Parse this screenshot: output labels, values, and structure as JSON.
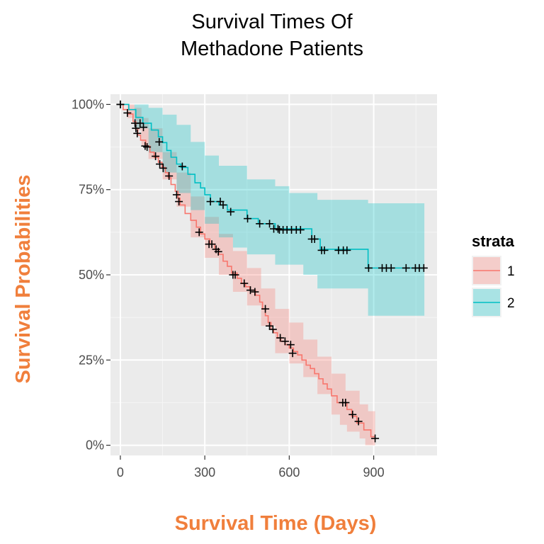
{
  "chart_data": {
    "type": "line",
    "subtype": "kaplan-meier-survival",
    "title_lines": [
      "Survival Times Of",
      "Methadone Patients"
    ],
    "xlabel": "Survival Time (Days)",
    "ylabel": "Survival Probabilities",
    "xlim": [
      -35,
      1125
    ],
    "ylim": [
      -0.03,
      1.03
    ],
    "x_ticks": [
      0,
      300,
      600,
      900
    ],
    "x_tick_labels": [
      "0",
      "300",
      "600",
      "900"
    ],
    "y_ticks": [
      0,
      0.25,
      0.5,
      0.75,
      1.0
    ],
    "y_tick_labels": [
      "0%",
      "25%",
      "50%",
      "75%",
      "100%"
    ],
    "x_minor_ticks": [
      150,
      450,
      750,
      1050
    ],
    "y_minor_ticks": [
      0.125,
      0.375,
      0.625,
      0.875
    ],
    "grid": true,
    "legend": {
      "title": "strata",
      "position": "right",
      "items": [
        "1",
        "2"
      ]
    },
    "series": [
      {
        "name": "1",
        "color": "#F8766D",
        "fill": "#F8766D",
        "steps": [
          [
            0,
            1.0
          ],
          [
            10,
            0.985
          ],
          [
            25,
            0.972
          ],
          [
            45,
            0.95
          ],
          [
            55,
            0.93
          ],
          [
            62,
            0.91
          ],
          [
            72,
            0.895
          ],
          [
            90,
            0.878
          ],
          [
            105,
            0.86
          ],
          [
            120,
            0.845
          ],
          [
            135,
            0.83
          ],
          [
            148,
            0.815
          ],
          [
            160,
            0.8
          ],
          [
            170,
            0.785
          ],
          [
            180,
            0.765
          ],
          [
            195,
            0.745
          ],
          [
            205,
            0.725
          ],
          [
            212,
            0.705
          ],
          [
            230,
            0.68
          ],
          [
            250,
            0.66
          ],
          [
            270,
            0.64
          ],
          [
            285,
            0.62
          ],
          [
            300,
            0.605
          ],
          [
            318,
            0.59
          ],
          [
            335,
            0.575
          ],
          [
            350,
            0.56
          ],
          [
            365,
            0.54
          ],
          [
            380,
            0.525
          ],
          [
            395,
            0.505
          ],
          [
            415,
            0.49
          ],
          [
            430,
            0.475
          ],
          [
            445,
            0.465
          ],
          [
            460,
            0.455
          ],
          [
            480,
            0.44
          ],
          [
            495,
            0.42
          ],
          [
            505,
            0.4
          ],
          [
            515,
            0.38
          ],
          [
            525,
            0.36
          ],
          [
            535,
            0.34
          ],
          [
            545,
            0.33
          ],
          [
            558,
            0.315
          ],
          [
            570,
            0.305
          ],
          [
            585,
            0.295
          ],
          [
            600,
            0.285
          ],
          [
            615,
            0.275
          ],
          [
            630,
            0.265
          ],
          [
            645,
            0.25
          ],
          [
            660,
            0.235
          ],
          [
            675,
            0.225
          ],
          [
            690,
            0.21
          ],
          [
            705,
            0.195
          ],
          [
            720,
            0.18
          ],
          [
            735,
            0.165
          ],
          [
            750,
            0.145
          ],
          [
            770,
            0.125
          ],
          [
            805,
            0.105
          ],
          [
            822,
            0.085
          ],
          [
            840,
            0.065
          ],
          [
            865,
            0.045
          ],
          [
            890,
            0.025
          ],
          [
            905,
            0.025
          ]
        ],
        "ci_lower": [
          [
            0,
            1.0
          ],
          [
            25,
            0.96
          ],
          [
            50,
            0.925
          ],
          [
            75,
            0.88
          ],
          [
            100,
            0.84
          ],
          [
            150,
            0.78
          ],
          [
            200,
            0.7
          ],
          [
            250,
            0.61
          ],
          [
            300,
            0.55
          ],
          [
            350,
            0.5
          ],
          [
            400,
            0.45
          ],
          [
            450,
            0.41
          ],
          [
            500,
            0.35
          ],
          [
            550,
            0.27
          ],
          [
            600,
            0.24
          ],
          [
            650,
            0.2
          ],
          [
            700,
            0.15
          ],
          [
            750,
            0.09
          ],
          [
            780,
            0.06
          ],
          [
            805,
            0.04
          ],
          [
            850,
            0.02
          ],
          [
            870,
            0.0
          ],
          [
            905,
            0.0
          ]
        ],
        "ci_upper": [
          [
            0,
            1.0
          ],
          [
            25,
            1.0
          ],
          [
            50,
            0.99
          ],
          [
            75,
            0.96
          ],
          [
            100,
            0.93
          ],
          [
            150,
            0.86
          ],
          [
            200,
            0.8
          ],
          [
            250,
            0.73
          ],
          [
            300,
            0.67
          ],
          [
            350,
            0.62
          ],
          [
            400,
            0.57
          ],
          [
            450,
            0.52
          ],
          [
            500,
            0.46
          ],
          [
            550,
            0.4
          ],
          [
            600,
            0.36
          ],
          [
            650,
            0.31
          ],
          [
            700,
            0.26
          ],
          [
            750,
            0.21
          ],
          [
            800,
            0.16
          ],
          [
            850,
            0.12
          ],
          [
            880,
            0.1
          ],
          [
            905,
            0.09
          ]
        ],
        "censored": [
          [
            0,
            1.0
          ],
          [
            25,
            0.975
          ],
          [
            55,
            0.93
          ],
          [
            60,
            0.915
          ],
          [
            88,
            0.878
          ],
          [
            95,
            0.875
          ],
          [
            125,
            0.848
          ],
          [
            140,
            0.825
          ],
          [
            152,
            0.813
          ],
          [
            173,
            0.79
          ],
          [
            200,
            0.735
          ],
          [
            208,
            0.715
          ],
          [
            280,
            0.625
          ],
          [
            315,
            0.59
          ],
          [
            325,
            0.59
          ],
          [
            340,
            0.575
          ],
          [
            348,
            0.568
          ],
          [
            400,
            0.5
          ],
          [
            408,
            0.5
          ],
          [
            440,
            0.475
          ],
          [
            462,
            0.455
          ],
          [
            478,
            0.45
          ],
          [
            515,
            0.4
          ],
          [
            530,
            0.35
          ],
          [
            542,
            0.34
          ],
          [
            568,
            0.315
          ],
          [
            585,
            0.305
          ],
          [
            605,
            0.295
          ],
          [
            612,
            0.27
          ],
          [
            800,
            0.125
          ],
          [
            790,
            0.125
          ],
          [
            825,
            0.09
          ],
          [
            846,
            0.07
          ],
          [
            905,
            0.02
          ]
        ]
      },
      {
        "name": "2",
        "color": "#00BFC4",
        "fill": "#00BFC4",
        "steps": [
          [
            0,
            1.0
          ],
          [
            30,
            0.985
          ],
          [
            55,
            0.962
          ],
          [
            80,
            0.945
          ],
          [
            110,
            0.925
          ],
          [
            135,
            0.905
          ],
          [
            150,
            0.888
          ],
          [
            165,
            0.865
          ],
          [
            180,
            0.845
          ],
          [
            200,
            0.825
          ],
          [
            215,
            0.815
          ],
          [
            240,
            0.795
          ],
          [
            265,
            0.77
          ],
          [
            285,
            0.755
          ],
          [
            300,
            0.735
          ],
          [
            320,
            0.715
          ],
          [
            350,
            0.705
          ],
          [
            380,
            0.69
          ],
          [
            450,
            0.665
          ],
          [
            490,
            0.65
          ],
          [
            550,
            0.635
          ],
          [
            680,
            0.605
          ],
          [
            710,
            0.575
          ],
          [
            830,
            0.575
          ],
          [
            880,
            0.52
          ],
          [
            1080,
            0.52
          ]
        ],
        "ci_lower": [
          [
            0,
            1.0
          ],
          [
            50,
            0.93
          ],
          [
            100,
            0.86
          ],
          [
            150,
            0.8
          ],
          [
            200,
            0.74
          ],
          [
            250,
            0.69
          ],
          [
            300,
            0.65
          ],
          [
            350,
            0.61
          ],
          [
            400,
            0.58
          ],
          [
            450,
            0.56
          ],
          [
            550,
            0.53
          ],
          [
            650,
            0.5
          ],
          [
            700,
            0.46
          ],
          [
            880,
            0.46
          ],
          [
            880,
            0.38
          ],
          [
            1080,
            0.38
          ]
        ],
        "ci_upper": [
          [
            0,
            1.0
          ],
          [
            50,
            1.0
          ],
          [
            100,
            0.99
          ],
          [
            150,
            0.97
          ],
          [
            200,
            0.94
          ],
          [
            250,
            0.89
          ],
          [
            300,
            0.85
          ],
          [
            350,
            0.82
          ],
          [
            450,
            0.78
          ],
          [
            550,
            0.76
          ],
          [
            600,
            0.74
          ],
          [
            700,
            0.72
          ],
          [
            880,
            0.72
          ],
          [
            880,
            0.71
          ],
          [
            1080,
            0.71
          ]
        ],
        "censored": [
          [
            0,
            1.0
          ],
          [
            52,
            0.945
          ],
          [
            70,
            0.945
          ],
          [
            82,
            0.933
          ],
          [
            138,
            0.89
          ],
          [
            220,
            0.818
          ],
          [
            320,
            0.715
          ],
          [
            355,
            0.715
          ],
          [
            365,
            0.705
          ],
          [
            392,
            0.685
          ],
          [
            452,
            0.665
          ],
          [
            495,
            0.65
          ],
          [
            530,
            0.65
          ],
          [
            545,
            0.635
          ],
          [
            560,
            0.635
          ],
          [
            565,
            0.632
          ],
          [
            578,
            0.632
          ],
          [
            592,
            0.632
          ],
          [
            608,
            0.632
          ],
          [
            625,
            0.632
          ],
          [
            640,
            0.632
          ],
          [
            680,
            0.605
          ],
          [
            690,
            0.605
          ],
          [
            715,
            0.572
          ],
          [
            725,
            0.572
          ],
          [
            775,
            0.572
          ],
          [
            792,
            0.572
          ],
          [
            805,
            0.572
          ],
          [
            882,
            0.52
          ],
          [
            930,
            0.52
          ],
          [
            945,
            0.52
          ],
          [
            962,
            0.52
          ],
          [
            1015,
            0.52
          ],
          [
            1048,
            0.52
          ],
          [
            1062,
            0.52
          ],
          [
            1078,
            0.52
          ]
        ]
      }
    ]
  }
}
